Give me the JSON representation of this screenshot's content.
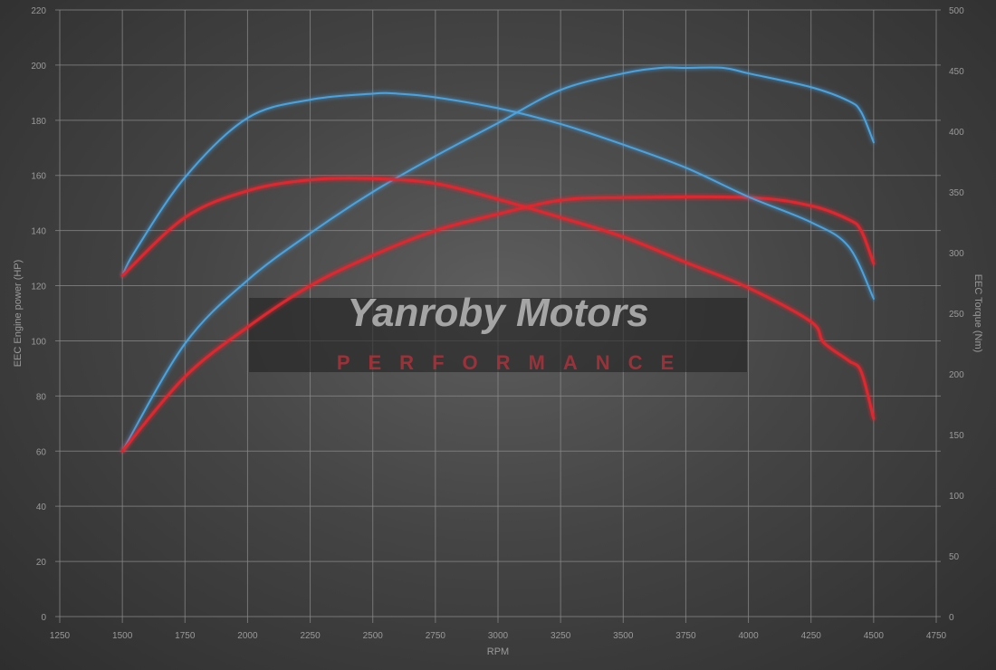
{
  "watermark": {
    "title": "Yanroby Motors",
    "subtitle": "PERFORMANCE"
  },
  "chart_data": {
    "type": "line",
    "xlabel": "RPM",
    "ylabel": "EEC Engine power (HP)",
    "y2label": "EEC Torque (Nm)",
    "xlim": [
      1250,
      4750
    ],
    "ylim": [
      0,
      220
    ],
    "y2lim": [
      0,
      500
    ],
    "xticks": [
      1250,
      1500,
      1750,
      2000,
      2250,
      2500,
      2750,
      3000,
      3250,
      3500,
      3750,
      4000,
      4250,
      4500,
      4750
    ],
    "yticks": [
      0,
      20,
      40,
      60,
      80,
      100,
      120,
      140,
      160,
      180,
      200,
      220
    ],
    "y2ticks": [
      0,
      50,
      100,
      150,
      200,
      250,
      300,
      350,
      400,
      450,
      500
    ],
    "grid": true,
    "series": [
      {
        "axis": "left",
        "color": "#4aa3e0",
        "points": [
          [
            1500,
            60
          ],
          [
            1750,
            99
          ],
          [
            2000,
            122
          ],
          [
            2250,
            139
          ],
          [
            2500,
            154
          ],
          [
            2750,
            167
          ],
          [
            3000,
            179
          ],
          [
            3250,
            191
          ],
          [
            3500,
            197
          ],
          [
            3650,
            199
          ],
          [
            3750,
            199
          ],
          [
            3900,
            199
          ],
          [
            4000,
            197
          ],
          [
            4250,
            192
          ],
          [
            4400,
            187
          ],
          [
            4450,
            183
          ],
          [
            4500,
            172
          ]
        ]
      },
      {
        "axis": "left",
        "color": "#e0262e",
        "points": [
          [
            1500,
            60
          ],
          [
            1750,
            87
          ],
          [
            2000,
            105
          ],
          [
            2250,
            120
          ],
          [
            2500,
            131
          ],
          [
            2750,
            140
          ],
          [
            3000,
            146
          ],
          [
            3250,
            151
          ],
          [
            3500,
            152
          ],
          [
            4000,
            152
          ],
          [
            4250,
            149
          ],
          [
            4400,
            144
          ],
          [
            4450,
            140
          ],
          [
            4500,
            128
          ]
        ]
      },
      {
        "axis": "right",
        "color": "#4aa3e0",
        "points": [
          [
            1500,
            281
          ],
          [
            1550,
            301
          ],
          [
            1750,
            362
          ],
          [
            2000,
            411
          ],
          [
            2250,
            426
          ],
          [
            2500,
            431
          ],
          [
            2600,
            431
          ],
          [
            2750,
            428
          ],
          [
            3000,
            419
          ],
          [
            3250,
            406
          ],
          [
            3500,
            389
          ],
          [
            3750,
            370
          ],
          [
            4000,
            346
          ],
          [
            4250,
            325
          ],
          [
            4400,
            305
          ],
          [
            4500,
            262
          ]
        ]
      },
      {
        "axis": "right",
        "color": "#e0262e",
        "points": [
          [
            1500,
            281
          ],
          [
            1750,
            329
          ],
          [
            2000,
            351
          ],
          [
            2250,
            360
          ],
          [
            2500,
            361
          ],
          [
            2750,
            357
          ],
          [
            3000,
            344
          ],
          [
            3250,
            329
          ],
          [
            3500,
            313
          ],
          [
            3750,
            292
          ],
          [
            4000,
            271
          ],
          [
            4250,
            243
          ],
          [
            4300,
            226
          ],
          [
            4400,
            211
          ],
          [
            4450,
            202
          ],
          [
            4500,
            163
          ]
        ]
      }
    ]
  }
}
